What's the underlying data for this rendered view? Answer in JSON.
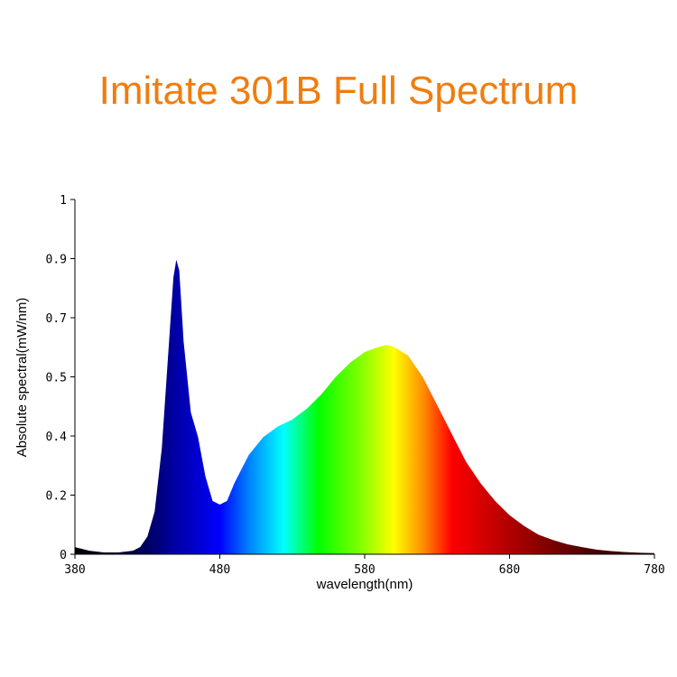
{
  "chart_data": {
    "type": "area",
    "title": "Imitate 301B Full Spectrum",
    "xlabel": "wavelength(nm)",
    "ylabel": "Absolute spectral(mW/nm)",
    "xlim": [
      380,
      780
    ],
    "ylim": [
      0,
      1
    ],
    "x_ticks": [
      "380",
      "480",
      "580",
      "680",
      "780"
    ],
    "y_ticks": [
      "0",
      "0.2",
      "0.4",
      "0.5",
      "0.7",
      "0.9",
      "1"
    ],
    "grid": false,
    "fill": "spectral color gradient",
    "series": [
      {
        "x": [
          380,
          385,
          390,
          400,
          410,
          420,
          425,
          430,
          435,
          440,
          445,
          448,
          450,
          452,
          455,
          460,
          465,
          470,
          475,
          480,
          485,
          490,
          500,
          510,
          520,
          530,
          540,
          550,
          560,
          570,
          580,
          590,
          595,
          600,
          610,
          620,
          630,
          640,
          650,
          660,
          670,
          680,
          690,
          700,
          710,
          720,
          730,
          740,
          750,
          760,
          770,
          780
        ],
        "y": [
          0.02,
          0.015,
          0.01,
          0.005,
          0.005,
          0.01,
          0.02,
          0.05,
          0.12,
          0.3,
          0.6,
          0.78,
          0.83,
          0.8,
          0.6,
          0.4,
          0.33,
          0.22,
          0.15,
          0.14,
          0.15,
          0.2,
          0.28,
          0.33,
          0.36,
          0.38,
          0.41,
          0.45,
          0.5,
          0.54,
          0.57,
          0.585,
          0.59,
          0.585,
          0.56,
          0.5,
          0.42,
          0.34,
          0.26,
          0.2,
          0.15,
          0.11,
          0.08,
          0.055,
          0.04,
          0.028,
          0.02,
          0.013,
          0.009,
          0.006,
          0.004,
          0.003
        ]
      }
    ]
  }
}
